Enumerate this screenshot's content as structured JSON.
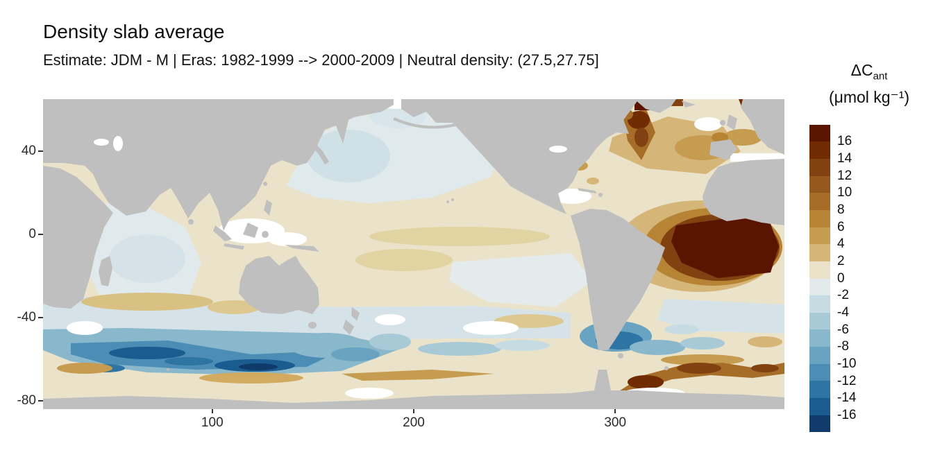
{
  "title": "Density slab average",
  "subtitle": "Estimate: JDM - M | Eras: 1982-1999 --> 2000-2009 | Neutral density: (27.5,27.75]",
  "legend": {
    "title_prefix": "ΔC",
    "title_subscript": "ant",
    "units": "(μmol kg⁻¹)"
  },
  "chart_data": {
    "type": "heatmap",
    "title": "Density slab average",
    "subtitle": "Estimate: JDM - M | Eras: 1982-1999 --> 2000-2009 | Neutral density: (27.5,27.75]",
    "variable": "ΔCant (μmol kg⁻¹)",
    "x": {
      "label": "",
      "ticks": [
        100,
        200,
        300
      ],
      "range": [
        16,
        384
      ]
    },
    "y": {
      "label": "",
      "ticks": [
        40,
        0,
        -40,
        -80
      ],
      "range": [
        -84,
        65
      ]
    },
    "grid": "off",
    "legend_position": "right",
    "bin_boundaries": [
      16,
      14,
      12,
      10,
      8,
      6,
      4,
      2,
      0,
      -2,
      -4,
      -6,
      -8,
      -10,
      -12,
      -14,
      -16
    ],
    "bin_colors": [
      "#5a1501",
      "#712b01",
      "#824110",
      "#94571c",
      "#a66d28",
      "#b78436",
      "#c69c50",
      "#d6b678",
      "#ebe3c9",
      "#e2eaec",
      "#c6dbe2",
      "#a8cad7",
      "#89b7cc",
      "#68a3c1",
      "#4b8db4",
      "#2f75a3",
      "#1a5c90",
      "#0f3a69"
    ],
    "land_color": "#bfbfbf",
    "na_color": "#ffffff",
    "notable_features": [
      {
        "region": "tropical/south-east Atlantic (Angola Basin, off west Africa)",
        "value": "> 16"
      },
      {
        "region": "subpolar North Atlantic and Nordic Seas",
        "value": "8 to > 16"
      },
      {
        "region": "north-east Atlantic near Europe (top right edge)",
        "value": "12 to > 16"
      },
      {
        "region": "Antarctic-zone Southern Ocean, Indian and Pacific sectors",
        "value": "-6 to < -16"
      },
      {
        "region": "Scotia Sea / south of South America",
        "value": "-6 to -14"
      },
      {
        "region": "Atlantic-sector Antarctic margin arc",
        "value": "6 to 14"
      },
      {
        "region": "southern mid-latitude band circumpolar",
        "value": "-2 to -6"
      },
      {
        "region": "subtropical and tropical Pacific, tropical Indian Ocean",
        "value": "0 to 4"
      },
      {
        "region": "north-west and northern Pacific, western Indian Ocean",
        "value": "-2 to 0"
      }
    ]
  }
}
